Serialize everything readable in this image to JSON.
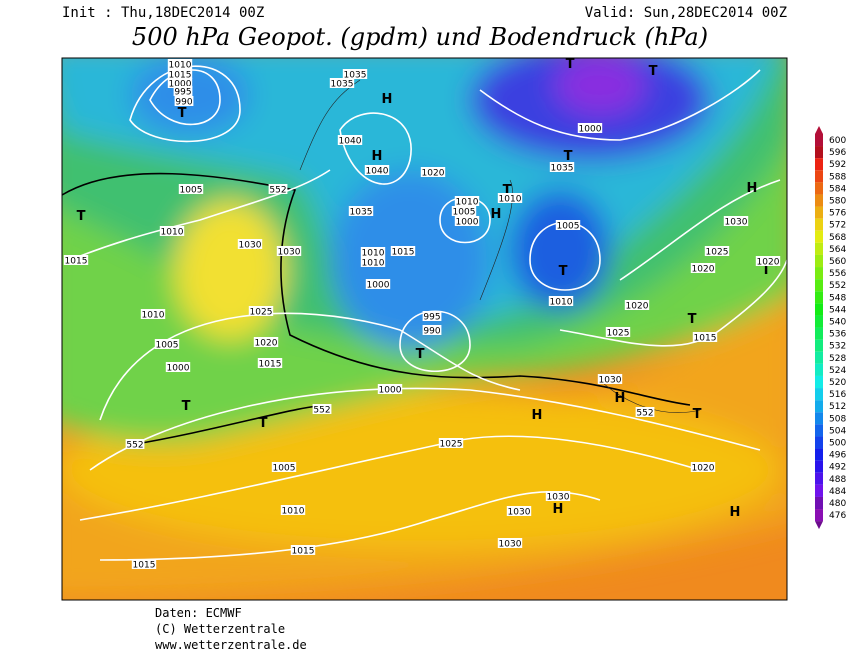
{
  "header": {
    "init": "Init : Thu,18DEC2014 00Z",
    "valid": "Valid: Sun,28DEC2014 00Z",
    "title": "500 hPa Geopot. (gpdm) und Bodendruck (hPa)"
  },
  "legend": {
    "levels": [
      600,
      596,
      592,
      588,
      584,
      580,
      576,
      572,
      568,
      564,
      560,
      556,
      552,
      548,
      544,
      540,
      536,
      532,
      528,
      524,
      520,
      516,
      512,
      508,
      504,
      500,
      496,
      492,
      488,
      484,
      480,
      476
    ]
  },
  "map": {
    "labels": [
      "1010",
      "1015",
      "1000",
      "995",
      "990",
      "T",
      "1035",
      "1035",
      "H",
      "1040",
      "H",
      "1040",
      "1020",
      "1005",
      "552",
      "T",
      "1010",
      "1035",
      "T",
      "1010",
      "1010",
      "1005",
      "1000",
      "1030",
      "1030",
      "1015",
      "1010",
      "1015",
      "1010",
      "1000",
      "1005",
      "T",
      "1010",
      "1025",
      "1010",
      "995",
      "990",
      "1020",
      "1005",
      "1015",
      "T",
      "1000",
      "1000",
      "1030",
      "H",
      "1025",
      "T",
      "552",
      "T",
      "H",
      "552",
      "T",
      "552",
      "1025",
      "1005",
      "1010",
      "1030",
      "H",
      "1030",
      "1030",
      "1015",
      "1015",
      "H",
      "1020",
      "1020",
      "1015",
      "T",
      "1025",
      "1020",
      "H",
      "1030",
      "T",
      "1020",
      "T",
      "T",
      "1000",
      "T",
      "1035",
      "H"
    ]
  },
  "footer": {
    "line1": "Daten: ECMWF",
    "line2": "(C) Wetterzentrale",
    "line3": "www.wetterzentrale.de"
  }
}
